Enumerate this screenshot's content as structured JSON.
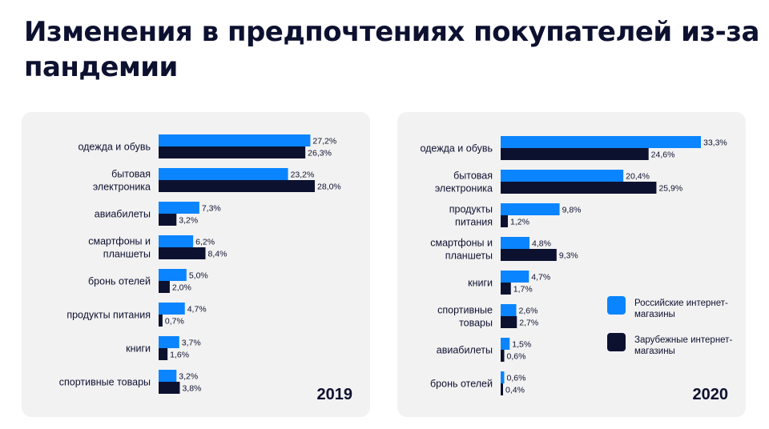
{
  "title": "Изменения в предпочтениях покупателей из-за пандемии",
  "colors": {
    "russian": "#0a84ff",
    "foreign": "#0d1130"
  },
  "legend": {
    "russian": "Российские интернет-магазины",
    "foreign": "Зарубежные интернет-магазины"
  },
  "chart_data": [
    {
      "type": "bar",
      "orientation": "horizontal",
      "year": "2019",
      "categories": [
        [
          "одежда и обувь"
        ],
        [
          "бытовая",
          "электроника"
        ],
        [
          "авиабилеты"
        ],
        [
          "смартфоны и",
          "планшеты"
        ],
        [
          "бронь отелей"
        ],
        [
          "продукты питания"
        ],
        [
          "книги"
        ],
        [
          "спортивные товары"
        ]
      ],
      "series": [
        {
          "name": "Российские интернет-магазины",
          "values": [
            27.2,
            23.2,
            7.3,
            6.2,
            5.0,
            4.7,
            3.7,
            3.2
          ],
          "labels": [
            "27,2%",
            "23,2%",
            "7,3%",
            "6,2%",
            "5,0%",
            "4,7%",
            "3,7%",
            "3,2%"
          ]
        },
        {
          "name": "Зарубежные интернет-магазины",
          "values": [
            26.3,
            28.0,
            3.2,
            8.4,
            2.0,
            0.7,
            1.6,
            3.8
          ],
          "labels": [
            "26,3%",
            "28,0%",
            "3,2%",
            "8,4%",
            "2,0%",
            "0,7%",
            "1,6%",
            "3,8%"
          ]
        }
      ],
      "xlim": [
        0,
        28.0
      ],
      "grid": false,
      "legend_position": "right"
    },
    {
      "type": "bar",
      "orientation": "horizontal",
      "year": "2020",
      "categories": [
        [
          "одежда и обувь"
        ],
        [
          "бытовая",
          "электроника"
        ],
        [
          "продукты",
          "питания"
        ],
        [
          "смартфоны и",
          "планшеты"
        ],
        [
          "книги"
        ],
        [
          "спортивные",
          "товары"
        ],
        [
          "авиабилеты"
        ],
        [
          "бронь отелей"
        ]
      ],
      "series": [
        {
          "name": "Российские интернет-магазины",
          "values": [
            33.3,
            20.4,
            9.8,
            4.8,
            4.7,
            2.6,
            1.5,
            0.6
          ],
          "labels": [
            "33,3%",
            "20,4%",
            "9,8%",
            "4,8%",
            "4,7%",
            "2,6%",
            "1,5%",
            "0,6%"
          ]
        },
        {
          "name": "Зарубежные интернет-магазины",
          "values": [
            24.6,
            25.9,
            1.2,
            9.3,
            1.7,
            2.7,
            0.6,
            0.4
          ],
          "labels": [
            "24,6%",
            "25,9%",
            "1,2%",
            "9,3%",
            "1,7%",
            "2,7%",
            "0,6%",
            "0,4%"
          ]
        }
      ],
      "xlim": [
        0,
        33.3
      ],
      "grid": false,
      "legend_position": "right"
    }
  ]
}
